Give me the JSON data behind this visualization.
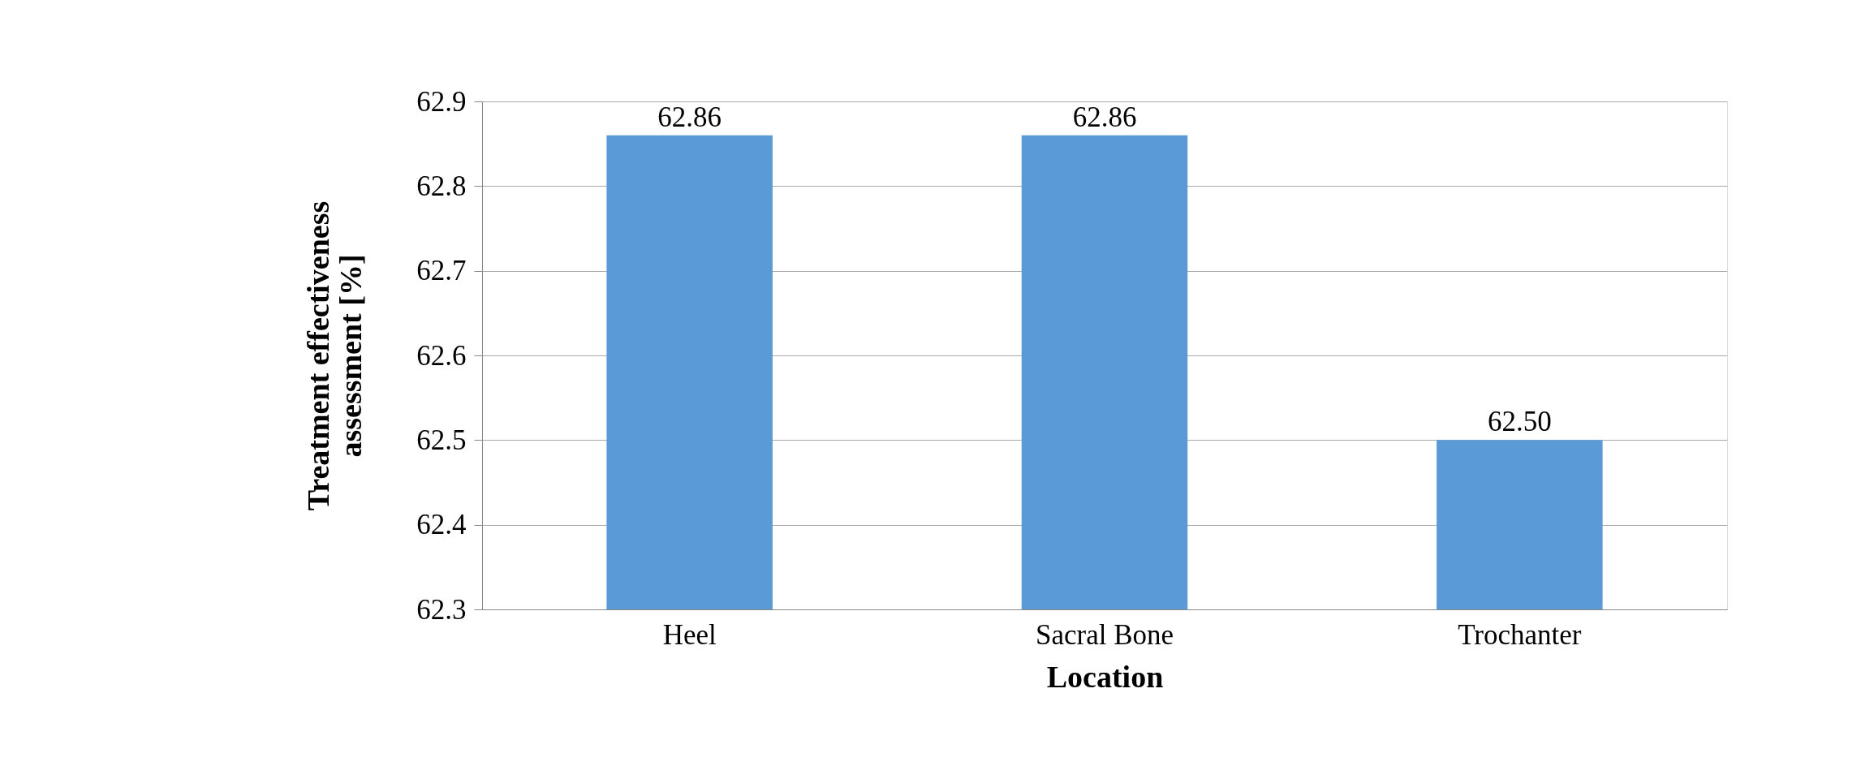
{
  "chart_data": {
    "type": "bar",
    "xlabel": "Location",
    "ylabel": "Treatment effectiveness assessment [%]",
    "categories": [
      "Heel",
      "Sacral Bone",
      "Trochanter"
    ],
    "values": [
      62.86,
      62.86,
      62.5
    ],
    "value_labels": [
      "62.86",
      "62.86",
      "62.50"
    ],
    "color": "#5b9bd5",
    "ylim": [
      62.3,
      62.9
    ],
    "yticks": [
      62.3,
      62.4,
      62.5,
      62.6,
      62.7,
      62.8,
      62.9
    ],
    "grid": "y"
  }
}
